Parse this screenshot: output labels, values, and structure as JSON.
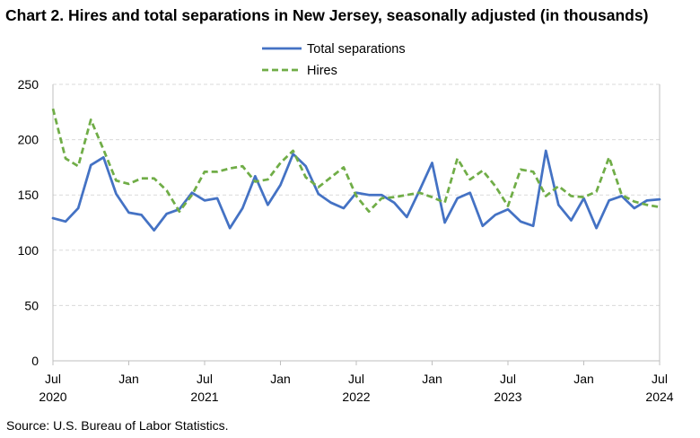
{
  "title": "Chart 2. Hires and total separations in New Jersey, seasonally adjusted (in thousands)",
  "source": "Source: U.S. Bureau of Labor Statistics.",
  "colors": {
    "separations": "#4472C4",
    "hires": "#70AD47",
    "grid": "#d9d9d9"
  },
  "chart_data": {
    "type": "line",
    "title": "Chart 2. Hires and total separations in New Jersey, seasonally adjusted (in thousands)",
    "xlabel": "",
    "ylabel": "",
    "ylim": [
      0,
      250
    ],
    "yticks": [
      0,
      50,
      100,
      150,
      200,
      250
    ],
    "grid": "horizontal",
    "legend": "top-center",
    "x": [
      "2020-07",
      "2020-08",
      "2020-09",
      "2020-10",
      "2020-11",
      "2020-12",
      "2021-01",
      "2021-02",
      "2021-03",
      "2021-04",
      "2021-05",
      "2021-06",
      "2021-07",
      "2021-08",
      "2021-09",
      "2021-10",
      "2021-11",
      "2021-12",
      "2022-01",
      "2022-02",
      "2022-03",
      "2022-04",
      "2022-05",
      "2022-06",
      "2022-07",
      "2022-08",
      "2022-09",
      "2022-10",
      "2022-11",
      "2022-12",
      "2023-01",
      "2023-02",
      "2023-03",
      "2023-04",
      "2023-05",
      "2023-06",
      "2023-07",
      "2023-08",
      "2023-09",
      "2023-10",
      "2023-11",
      "2023-12",
      "2024-01",
      "2024-02",
      "2024-03",
      "2024-04",
      "2024-05",
      "2024-06",
      "2024-07"
    ],
    "xticks": [
      {
        "label": "Jul",
        "year": "2020",
        "index": 0
      },
      {
        "label": "Jan",
        "year": "",
        "index": 6
      },
      {
        "label": "Jul",
        "year": "2021",
        "index": 12
      },
      {
        "label": "Jan",
        "year": "",
        "index": 18
      },
      {
        "label": "Jul",
        "year": "2022",
        "index": 24
      },
      {
        "label": "Jan",
        "year": "",
        "index": 30
      },
      {
        "label": "Jul",
        "year": "2023",
        "index": 36
      },
      {
        "label": "Jan",
        "year": "",
        "index": 42
      },
      {
        "label": "Jul",
        "year": "2024",
        "index": 48
      }
    ],
    "series": [
      {
        "name": "Total separations",
        "style": "solid",
        "values": [
          129,
          126,
          138,
          177,
          184,
          151,
          134,
          132,
          118,
          133,
          137,
          152,
          145,
          147,
          120,
          138,
          167,
          141,
          159,
          187,
          176,
          151,
          143,
          138,
          152,
          150,
          150,
          143,
          130,
          154,
          179,
          125,
          147,
          152,
          122,
          132,
          137,
          126,
          122,
          190,
          141,
          127,
          147,
          120,
          145,
          149,
          138,
          145,
          146
        ]
      },
      {
        "name": "Hires",
        "style": "dashed",
        "values": [
          228,
          183,
          176,
          218,
          191,
          163,
          160,
          165,
          165,
          154,
          135,
          150,
          171,
          171,
          174,
          176,
          162,
          164,
          179,
          190,
          166,
          157,
          166,
          175,
          149,
          135,
          147,
          148,
          150,
          152,
          148,
          143,
          183,
          164,
          172,
          158,
          140,
          173,
          171,
          149,
          158,
          149,
          148,
          153,
          184,
          150,
          144,
          141,
          139
        ]
      }
    ]
  }
}
